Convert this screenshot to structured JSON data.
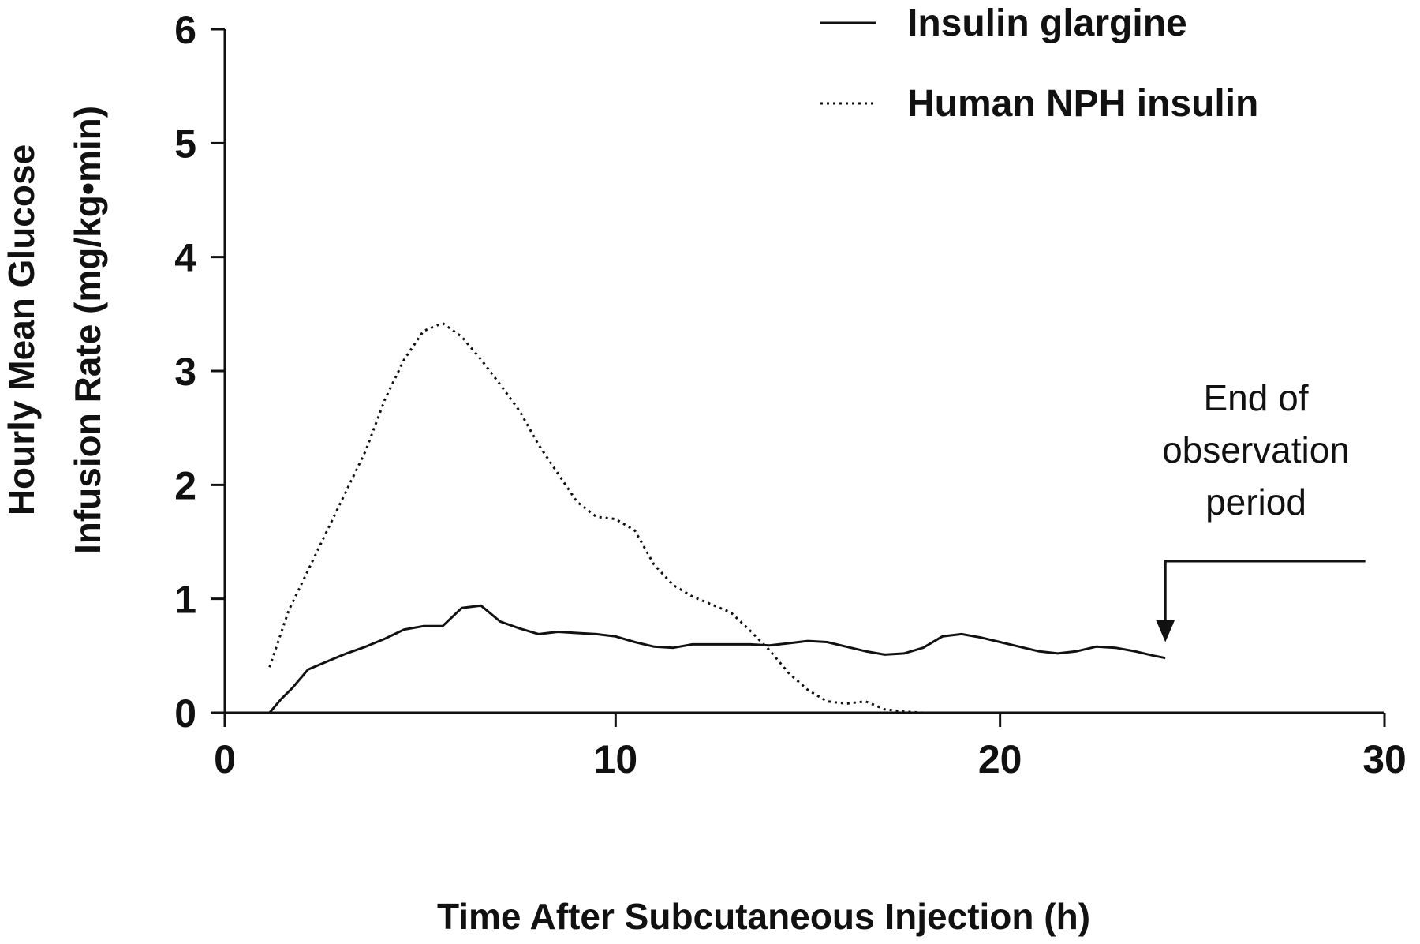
{
  "chart_data": {
    "type": "line",
    "title": "",
    "xlabel": "Time After Subcutaneous Injection (h)",
    "ylabel_lines": [
      "Hourly Mean Glucose",
      "Infusion Rate (mg/kg•min)"
    ],
    "xlim": [
      0,
      30
    ],
    "ylim": [
      0,
      6
    ],
    "x_ticks": [
      0,
      10,
      20,
      30
    ],
    "y_ticks": [
      0,
      1,
      2,
      3,
      4,
      5,
      6
    ],
    "grid": false,
    "legend_position": "top-right",
    "series": [
      {
        "name": "Insulin glargine",
        "style": "solid",
        "color": "#111111",
        "x": [
          1.0,
          1.3,
          1.6,
          2.0,
          2.5,
          3.0,
          3.5,
          4.0,
          4.5,
          5.0,
          5.5,
          6.0,
          6.5,
          7.0,
          7.5,
          8.0,
          8.5,
          9.0,
          9.5,
          10.0,
          10.5,
          11.0,
          11.5,
          12.0,
          12.5,
          13.0,
          13.5,
          14.0,
          14.5,
          15.0,
          15.5,
          16.0,
          16.5,
          17.0,
          17.5,
          18.0,
          18.5,
          19.0,
          19.5,
          20.0,
          20.5,
          21.0,
          21.5,
          22.0,
          22.5,
          23.0,
          23.5,
          24.0,
          24.3
        ],
        "values": [
          0.0,
          0.12,
          0.22,
          0.38,
          0.45,
          0.52,
          0.58,
          0.65,
          0.73,
          0.76,
          0.76,
          0.92,
          0.94,
          0.8,
          0.74,
          0.69,
          0.71,
          0.7,
          0.69,
          0.67,
          0.62,
          0.58,
          0.57,
          0.6,
          0.6,
          0.6,
          0.6,
          0.59,
          0.61,
          0.63,
          0.62,
          0.58,
          0.54,
          0.51,
          0.52,
          0.57,
          0.67,
          0.69,
          0.66,
          0.62,
          0.58,
          0.54,
          0.52,
          0.54,
          0.58,
          0.57,
          0.54,
          0.5,
          0.48
        ]
      },
      {
        "name": "Human NPH insulin",
        "style": "dotted",
        "color": "#111111",
        "x": [
          1.0,
          1.5,
          2.0,
          2.5,
          3.0,
          3.5,
          4.0,
          4.5,
          5.0,
          5.5,
          6.0,
          6.5,
          7.0,
          7.5,
          8.0,
          8.5,
          9.0,
          9.5,
          10.0,
          10.5,
          11.0,
          11.5,
          12.0,
          12.5,
          13.0,
          13.5,
          14.0,
          14.5,
          15.0,
          15.5,
          16.0,
          16.5,
          17.0,
          17.5,
          18.0,
          19.0,
          20.0,
          22.0,
          24.3
        ],
        "values": [
          0.4,
          0.9,
          1.25,
          1.6,
          1.95,
          2.3,
          2.75,
          3.1,
          3.35,
          3.42,
          3.3,
          3.1,
          2.88,
          2.65,
          2.35,
          2.1,
          1.85,
          1.72,
          1.7,
          1.6,
          1.3,
          1.12,
          1.02,
          0.95,
          0.88,
          0.72,
          0.55,
          0.35,
          0.2,
          0.1,
          0.08,
          0.1,
          0.03,
          0.01,
          0.0,
          0.0,
          0.0,
          0.0,
          0.0
        ]
      }
    ],
    "annotation": {
      "lines": [
        "End of",
        "observation",
        "period"
      ],
      "arrow_x": 24.3,
      "arrow_tip_y": 0.62,
      "bracket_top_y": 1.33,
      "bracket_end_x": 29.5
    }
  }
}
